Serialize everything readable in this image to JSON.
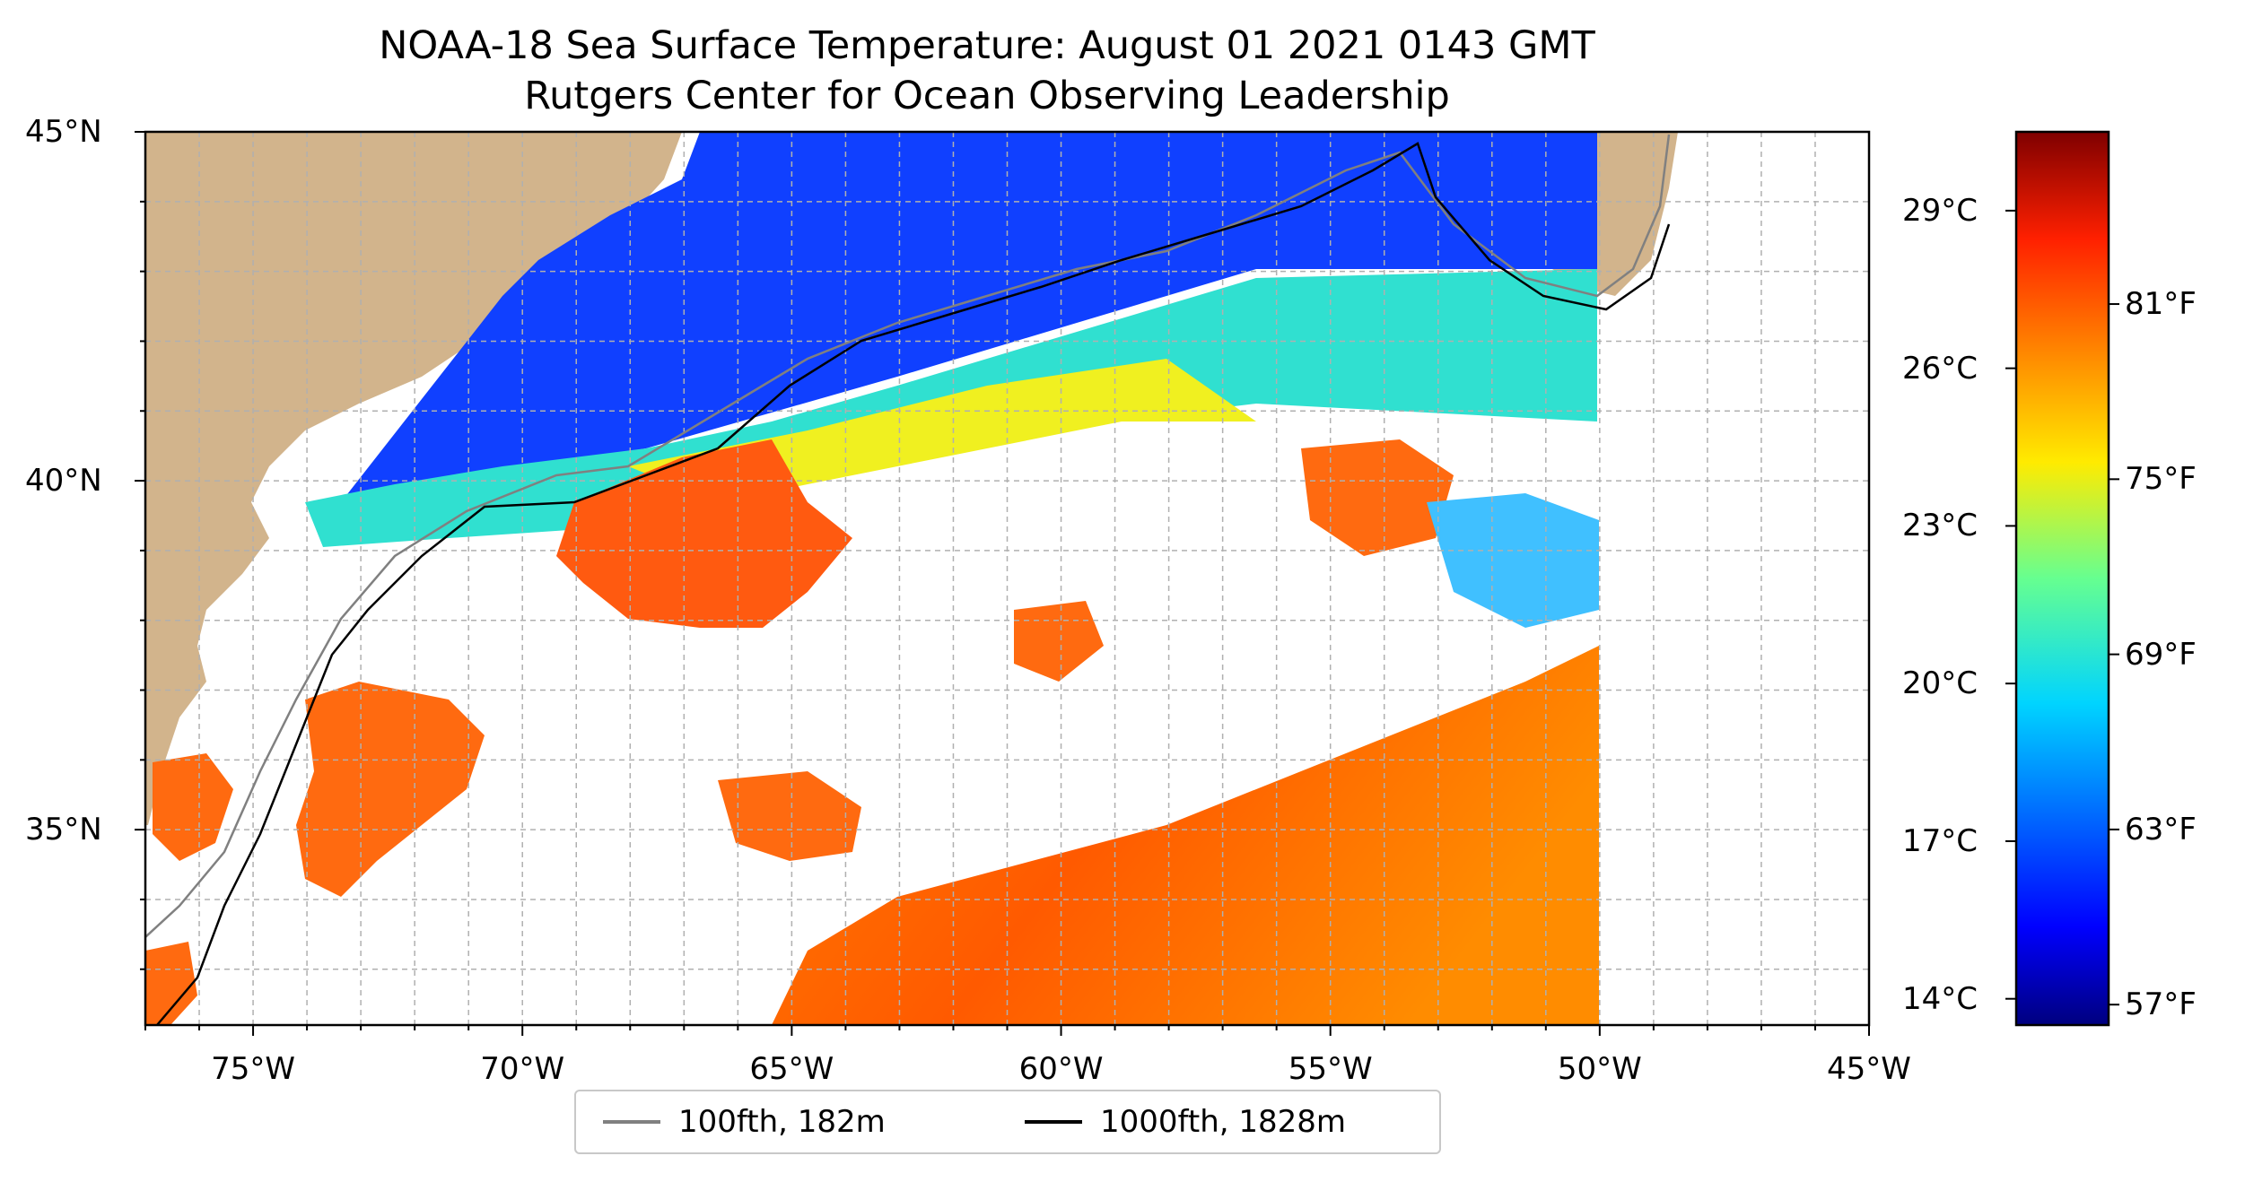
{
  "title": {
    "line1": "NOAA-18 Sea Surface Temperature: August 01 2021 0143 GMT",
    "line2": "Rutgers Center for Ocean Observing Leadership"
  },
  "axes": {
    "lat_labels": [
      "45°N",
      "40°N",
      "35°N"
    ],
    "lat_values": [
      45,
      40,
      35
    ],
    "lon_labels": [
      "75°W",
      "70°W",
      "65°W",
      "60°W",
      "55°W",
      "50°W",
      "45°W"
    ],
    "lon_values": [
      -75,
      -70,
      -65,
      -60,
      -55,
      -50,
      -45
    ],
    "lon_range": [
      -77,
      -45
    ],
    "lat_range": [
      32.2,
      45
    ],
    "gridlines": "dashed"
  },
  "colorbar": {
    "colormap": "jet",
    "celsius_labels": [
      "29°C",
      "26°C",
      "23°C",
      "20°C",
      "17°C",
      "14°C"
    ],
    "celsius_values": [
      29,
      26,
      23,
      20,
      17,
      14
    ],
    "fahrenheit_labels": [
      "81°F",
      "75°F",
      "69°F",
      "63°F",
      "57°F"
    ],
    "fahrenheit_values": [
      81,
      75,
      69,
      63,
      57
    ],
    "range_celsius": [
      13.5,
      30.5
    ]
  },
  "legend": {
    "items": [
      {
        "label": "100fth, 182m",
        "color": "#808080"
      },
      {
        "label": "1000fth, 1828m",
        "color": "#000000"
      }
    ]
  },
  "colors": {
    "land": "#d2b48c",
    "lakes": "#9fc5e8",
    "no_data": "#ffffff"
  }
}
